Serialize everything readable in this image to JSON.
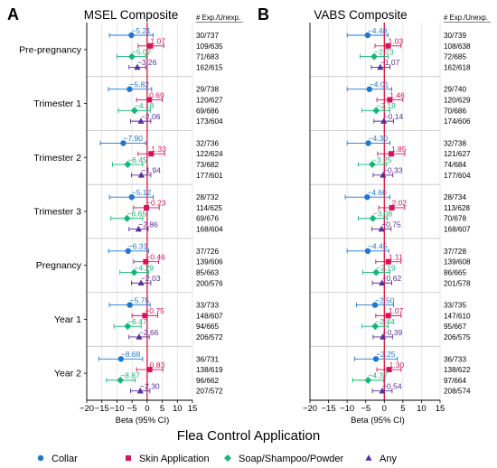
{
  "chart_data": [
    {
      "type": "scatter",
      "panel_letter": "A",
      "title": "MSEL Composite",
      "xlabel": "Beta (95% CI)",
      "xlim": [
        -20,
        15
      ],
      "xticks": [
        "−20",
        "−15",
        "−10",
        "−5",
        "0",
        "5",
        "10",
        "15"
      ],
      "counts_header": "# Exp./Unexp.",
      "groups": [
        {
          "label": "Pre-pregnancy",
          "rows": [
            {
              "est": -5.21,
              "lo": -12.5,
              "hi": 2.0,
              "label": "−5.21",
              "counts": "30/737"
            },
            {
              "est": 1.07,
              "lo": -3.0,
              "hi": 5.5,
              "label": "1.07",
              "counts": "109/635"
            },
            {
              "est": -5.07,
              "lo": -10.0,
              "hi": -0.5,
              "label": "−5.07",
              "counts": "71/683"
            },
            {
              "est": -3.26,
              "lo": -6.0,
              "hi": -0.5,
              "label": "−3.26",
              "counts": "162/615"
            }
          ]
        },
        {
          "label": "Trimester 1",
          "rows": [
            {
              "est": -5.82,
              "lo": -12.8,
              "hi": 1.5,
              "label": "−5.82",
              "counts": "29/738"
            },
            {
              "est": 0.69,
              "lo": -3.5,
              "hi": 5.0,
              "label": "0.69",
              "counts": "120/627"
            },
            {
              "est": -4.18,
              "lo": -9.5,
              "hi": 1.0,
              "label": "−4.18",
              "counts": "69/686"
            },
            {
              "est": -2.06,
              "lo": -5.5,
              "hi": 1.2,
              "label": "−2.06",
              "counts": "173/604"
            }
          ]
        },
        {
          "label": "Trimester 2",
          "rows": [
            {
              "est": -7.9,
              "lo": -15.5,
              "hi": -0.5,
              "label": "−7.90",
              "counts": "32/736"
            },
            {
              "est": 1.33,
              "lo": -3.0,
              "hi": 5.8,
              "label": "1.33",
              "counts": "122/624"
            },
            {
              "est": -6.45,
              "lo": -11.5,
              "hi": -1.5,
              "label": "−6.45",
              "counts": "73/682"
            },
            {
              "est": -1.94,
              "lo": -5.2,
              "hi": 1.2,
              "label": "−1.94",
              "counts": "177/601"
            }
          ]
        },
        {
          "label": "Trimester 3",
          "rows": [
            {
              "est": -5.12,
              "lo": -12.5,
              "hi": 2.0,
              "label": "−5.12",
              "counts": "28/732"
            },
            {
              "est": -0.23,
              "lo": -4.5,
              "hi": 4.0,
              "label": "−0.23",
              "counts": "114/625"
            },
            {
              "est": -6.65,
              "lo": -12.0,
              "hi": -1.5,
              "label": "−6.65",
              "counts": "69/676"
            },
            {
              "est": -2.86,
              "lo": -6.0,
              "hi": 0.3,
              "label": "−2.86",
              "counts": "168/604"
            }
          ]
        },
        {
          "label": "Pregnancy",
          "rows": [
            {
              "est": -6.31,
              "lo": -12.8,
              "hi": 0.5,
              "label": "−6.31",
              "counts": "37/726"
            },
            {
              "est": -0.46,
              "lo": -4.5,
              "hi": 3.8,
              "label": "−0.46",
              "counts": "139/606"
            },
            {
              "est": -4.29,
              "lo": -9.0,
              "hi": 0.5,
              "label": "−4.29",
              "counts": "85/663"
            },
            {
              "est": -2.03,
              "lo": -5.2,
              "hi": 1.2,
              "label": "−2.03",
              "counts": "200/576"
            }
          ]
        },
        {
          "label": "Year 1",
          "rows": [
            {
              "est": -5.75,
              "lo": -12.5,
              "hi": 1.0,
              "label": "−5.75",
              "counts": "33/733"
            },
            {
              "est": -0.75,
              "lo": -5.0,
              "hi": 3.5,
              "label": "−0.75",
              "counts": "148/607"
            },
            {
              "est": -6.47,
              "lo": -11.0,
              "hi": -2.0,
              "label": "−6.47",
              "counts": "94/665"
            },
            {
              "est": -2.66,
              "lo": -6.0,
              "hi": 0.7,
              "label": "−2.66",
              "counts": "206/572"
            }
          ]
        },
        {
          "label": "Year 2",
          "rows": [
            {
              "est": -8.68,
              "lo": -16.0,
              "hi": -1.5,
              "label": "−8.68",
              "counts": "36/731"
            },
            {
              "est": 0.83,
              "lo": -3.5,
              "hi": 5.2,
              "label": "0.83",
              "counts": "138/619"
            },
            {
              "est": -8.87,
              "lo": -13.5,
              "hi": -4.0,
              "label": "−8.87",
              "counts": "96/662"
            },
            {
              "est": -2.3,
              "lo": -5.5,
              "hi": 0.9,
              "label": "−2.30",
              "counts": "207/572"
            }
          ]
        }
      ]
    },
    {
      "type": "scatter",
      "panel_letter": "B",
      "title": "VABS Composite",
      "xlabel": "Beta (95% CI)",
      "xlim": [
        -20,
        15
      ],
      "xticks": [
        "−20",
        "−15",
        "−10",
        "−5",
        "0",
        "5",
        "10",
        "15"
      ],
      "counts_header": "# Exp./Unexp.",
      "groups": [
        {
          "label": "Pre-pregnancy",
          "rows": [
            {
              "est": -4.48,
              "lo": -10.0,
              "hi": 1.0,
              "label": "−4.48",
              "counts": "30/739"
            },
            {
              "est": 1.03,
              "lo": -2.5,
              "hi": 4.5,
              "label": "1.03",
              "counts": "108/638"
            },
            {
              "est": -2.73,
              "lo": -6.5,
              "hi": 1.0,
              "label": "−2.73",
              "counts": "72/685"
            },
            {
              "est": -1.07,
              "lo": -3.5,
              "hi": 1.5,
              "label": "−1.07",
              "counts": "162/618"
            }
          ]
        },
        {
          "label": "Trimester 1",
          "rows": [
            {
              "est": -4.01,
              "lo": -10.0,
              "hi": 2.0,
              "label": "−4.01",
              "counts": "29/740"
            },
            {
              "est": 1.46,
              "lo": -2.0,
              "hi": 5.0,
              "label": "1.46",
              "counts": "120/629"
            },
            {
              "est": -2.18,
              "lo": -6.0,
              "hi": 1.5,
              "label": "−2.18",
              "counts": "70/686"
            },
            {
              "est": -0.14,
              "lo": -2.8,
              "hi": 2.5,
              "label": "−0.14",
              "counts": "174/606"
            }
          ]
        },
        {
          "label": "Trimester 2",
          "rows": [
            {
              "est": -4.3,
              "lo": -10.0,
              "hi": 1.5,
              "label": "−4.30",
              "counts": "32/738"
            },
            {
              "est": 1.85,
              "lo": -1.8,
              "hi": 5.5,
              "label": "1.85",
              "counts": "121/627"
            },
            {
              "est": -3.25,
              "lo": -7.0,
              "hi": 0.5,
              "label": "−3.25",
              "counts": "74/684"
            },
            {
              "est": -0.33,
              "lo": -3.0,
              "hi": 2.3,
              "label": "−0.33",
              "counts": "177/604"
            }
          ]
        },
        {
          "label": "Trimester 3",
          "rows": [
            {
              "est": -4.6,
              "lo": -10.5,
              "hi": 1.5,
              "label": "−4.60",
              "counts": "28/734"
            },
            {
              "est": 2.02,
              "lo": -1.5,
              "hi": 5.5,
              "label": "2.02",
              "counts": "113/628"
            },
            {
              "est": -3.08,
              "lo": -7.0,
              "hi": 0.8,
              "label": "−3.08",
              "counts": "70/678"
            },
            {
              "est": -0.75,
              "lo": -3.3,
              "hi": 1.8,
              "label": "−0.75",
              "counts": "168/607"
            }
          ]
        },
        {
          "label": "Pregnancy",
          "rows": [
            {
              "est": -4.45,
              "lo": -10.0,
              "hi": 1.2,
              "label": "−4.45",
              "counts": "37/728"
            },
            {
              "est": 1.11,
              "lo": -2.3,
              "hi": 4.5,
              "label": "1.11",
              "counts": "139/608"
            },
            {
              "est": -2.19,
              "lo": -5.8,
              "hi": 1.5,
              "label": "−2.19",
              "counts": "86/665"
            },
            {
              "est": -0.62,
              "lo": -3.2,
              "hi": 2.0,
              "label": "−0.62",
              "counts": "201/578"
            }
          ]
        },
        {
          "label": "Year 1",
          "rows": [
            {
              "est": -2.5,
              "lo": -7.5,
              "hi": 2.5,
              "label": "−2.50",
              "counts": "33/735"
            },
            {
              "est": 1.07,
              "lo": -2.3,
              "hi": 4.5,
              "label": "1.07",
              "counts": "147/610"
            },
            {
              "est": -2.44,
              "lo": -6.0,
              "hi": 1.0,
              "label": "−2.44",
              "counts": "95/667"
            },
            {
              "est": -0.39,
              "lo": -3.0,
              "hi": 2.2,
              "label": "−0.39",
              "counts": "206/575"
            }
          ]
        },
        {
          "label": "Year 2",
          "rows": [
            {
              "est": -2.25,
              "lo": -8.0,
              "hi": 3.5,
              "label": "−2.25",
              "counts": "36/733"
            },
            {
              "est": 1.3,
              "lo": -2.0,
              "hi": 4.5,
              "label": "1.30",
              "counts": "138/622"
            },
            {
              "est": -4.37,
              "lo": -8.5,
              "hi": -0.2,
              "label": "−4.37",
              "counts": "97/664"
            },
            {
              "est": -0.54,
              "lo": -3.2,
              "hi": 2.1,
              "label": "−0.54",
              "counts": "208/574"
            }
          ]
        }
      ]
    }
  ],
  "legend": {
    "title": "Flea Control Application",
    "placement": "bottom",
    "entries": [
      {
        "name": "Collar",
        "shape": "circle",
        "color": "#1f77d4"
      },
      {
        "name": "Skin Application",
        "shape": "square",
        "color": "#d4145a"
      },
      {
        "name": "Soap/Shampoo/Powder",
        "shape": "diamond",
        "color": "#13b877"
      },
      {
        "name": "Any",
        "shape": "triangle",
        "color": "#5a2e9c"
      }
    ]
  },
  "colors": {
    "zero_line": "#e0143c",
    "grid": "#d9d9d9",
    "separator": "#bbbbbb"
  }
}
